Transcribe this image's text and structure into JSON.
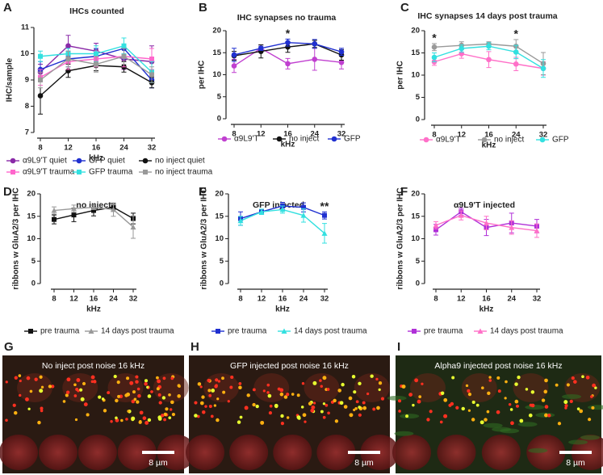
{
  "chart_data": [
    {
      "type": "line",
      "panel": "A",
      "title": "IHCs counted",
      "x_label": "kHz",
      "y_label": "IHC/sample",
      "categories": [
        "8",
        "12",
        "16",
        "24",
        "32"
      ],
      "ylim": [
        7,
        11
      ],
      "yticks": [
        7,
        8,
        9,
        10,
        11
      ],
      "series": [
        {
          "name": "α9L9'T quiet",
          "color": "#8a2aa8",
          "marker": "circle",
          "values": [
            9.3,
            10.3,
            10.1,
            9.8,
            9.7
          ],
          "errors": [
            0.3,
            0.4,
            0.3,
            0.4,
            0.6
          ]
        },
        {
          "name": "GFP quiet",
          "color": "#2030d0",
          "marker": "circle",
          "values": [
            9.4,
            9.8,
            9.9,
            10.2,
            9.0
          ],
          "errors": [
            0.3,
            0.3,
            0.3,
            0.4,
            0.3
          ]
        },
        {
          "name": "no inject quiet",
          "color": "#111111",
          "marker": "circle",
          "values": [
            8.4,
            9.35,
            9.55,
            9.5,
            8.9
          ],
          "errors": [
            0.7,
            0.25,
            0.2,
            0.2,
            0.2
          ]
        },
        {
          "name": "α9L9'T trauma",
          "color": "#ff66cc",
          "marker": "square",
          "values": [
            9.1,
            9.7,
            9.8,
            9.9,
            9.8
          ],
          "errors": [
            0.3,
            0.3,
            0.3,
            0.4,
            0.4
          ]
        },
        {
          "name": "GFP trauma",
          "color": "#33e0e0",
          "marker": "square",
          "values": [
            9.9,
            10.0,
            10.0,
            10.3,
            9.3
          ],
          "errors": [
            0.2,
            0.2,
            0.3,
            0.3,
            0.4
          ]
        },
        {
          "name": "no inject trauma",
          "color": "#999999",
          "marker": "square",
          "values": [
            9.0,
            9.8,
            9.6,
            9.9,
            9.2
          ],
          "errors": [
            0.3,
            0.3,
            0.3,
            0.3,
            0.3
          ]
        }
      ]
    },
    {
      "type": "line",
      "panel": "B",
      "title": "IHC synapses no trauma",
      "x_label": "kHz",
      "y_label": "per IHC",
      "categories": [
        "8",
        "12",
        "16",
        "24",
        "32"
      ],
      "ylim": [
        0,
        20
      ],
      "yticks": [
        0,
        5,
        10,
        15,
        20
      ],
      "series": [
        {
          "name": "α9L9'T",
          "color": "#c040d0",
          "marker": "circle",
          "values": [
            12.0,
            16.0,
            12.5,
            13.5,
            12.8
          ],
          "errors": [
            1.5,
            0.8,
            1.2,
            2.5,
            1.5
          ]
        },
        {
          "name": "no inject",
          "color": "#111111",
          "marker": "circle",
          "values": [
            14.3,
            15.3,
            16.3,
            17.0,
            14.5
          ],
          "errors": [
            1.0,
            1.5,
            1.2,
            0.8,
            1.2
          ]
        },
        {
          "name": "GFP",
          "color": "#2030d0",
          "marker": "circle",
          "values": [
            14.5,
            16.0,
            17.3,
            17.0,
            15.2
          ],
          "errors": [
            1.5,
            0.5,
            0.8,
            1.0,
            0.8
          ]
        }
      ],
      "annotations": [
        {
          "text": "*",
          "x": "16",
          "color": "#2030d0"
        }
      ]
    },
    {
      "type": "line",
      "panel": "C",
      "title": "IHC synapses 14 days post trauma",
      "x_label": "kHz",
      "y_label": "per IHC",
      "categories": [
        "8",
        "12",
        "16",
        "24",
        "32"
      ],
      "ylim": [
        0,
        20
      ],
      "yticks": [
        0,
        5,
        10,
        15,
        20
      ],
      "series": [
        {
          "name": "α9L9'T",
          "color": "#ff70c8",
          "marker": "circle",
          "values": [
            13.0,
            14.8,
            13.5,
            12.5,
            11.5
          ],
          "errors": [
            0.8,
            1.0,
            1.8,
            1.5,
            1.5
          ]
        },
        {
          "name": "no inject",
          "color": "#999999",
          "marker": "circle",
          "values": [
            16.3,
            16.7,
            17.0,
            16.5,
            12.6
          ],
          "errors": [
            0.8,
            0.8,
            0.5,
            1.5,
            2.5
          ]
        },
        {
          "name": "GFP",
          "color": "#33e0e0",
          "marker": "circle",
          "values": [
            14.0,
            16.0,
            16.5,
            15.2,
            11.5
          ],
          "errors": [
            1.0,
            0.8,
            0.8,
            1.5,
            2.0
          ]
        }
      ],
      "annotations": [
        {
          "text": "*",
          "x": "8",
          "color": "#999999"
        },
        {
          "text": "*",
          "x": "24",
          "color": "#999999"
        }
      ]
    },
    {
      "type": "line",
      "panel": "D",
      "title": "no inject",
      "x_label": "kHz",
      "y_label": "ribbons w GluA2/3 per IHC",
      "categories": [
        "8",
        "12",
        "16",
        "24",
        "32"
      ],
      "ylim": [
        0,
        20
      ],
      "yticks": [
        0,
        5,
        10,
        15,
        20
      ],
      "series": [
        {
          "name": "pre trauma",
          "color": "#111111",
          "marker": "square",
          "values": [
            14.3,
            15.3,
            16.3,
            17.0,
            14.5
          ],
          "errors": [
            1.0,
            1.5,
            1.2,
            0.8,
            1.2
          ]
        },
        {
          "name": "14 days post trauma",
          "color": "#999999",
          "marker": "triangle",
          "values": [
            16.3,
            16.7,
            17.0,
            16.5,
            12.6
          ],
          "errors": [
            0.8,
            0.8,
            0.5,
            1.5,
            2.5
          ]
        }
      ]
    },
    {
      "type": "line",
      "panel": "E",
      "title": "GFP injected",
      "x_label": "kHz",
      "y_label": "ribbons w GluA2/3 per IHC",
      "categories": [
        "8",
        "12",
        "16",
        "24",
        "32"
      ],
      "ylim": [
        0,
        20
      ],
      "yticks": [
        0,
        5,
        10,
        15,
        20
      ],
      "series": [
        {
          "name": "pre trauma",
          "color": "#2030d0",
          "marker": "square",
          "values": [
            14.5,
            16.0,
            17.3,
            17.0,
            15.2
          ],
          "errors": [
            1.5,
            0.4,
            0.8,
            1.0,
            0.8
          ]
        },
        {
          "name": "14 days post trauma",
          "color": "#33e0e0",
          "marker": "triangle",
          "values": [
            14.0,
            16.0,
            16.5,
            15.2,
            11.2
          ],
          "errors": [
            1.0,
            0.6,
            0.8,
            1.5,
            2.2
          ]
        }
      ],
      "annotations": [
        {
          "text": "**",
          "x": "32",
          "color": "#33e0e0"
        }
      ]
    },
    {
      "type": "line",
      "panel": "F",
      "title": "α9L9'T injected",
      "x_label": "kHz",
      "y_label": "ribbons w GluA2/3 per IHC",
      "categories": [
        "8",
        "12",
        "16",
        "24",
        "32"
      ],
      "ylim": [
        0,
        20
      ],
      "yticks": [
        0,
        5,
        10,
        15,
        20
      ],
      "series": [
        {
          "name": "pre trauma",
          "color": "#b030d8",
          "marker": "square",
          "values": [
            12.0,
            16.0,
            12.5,
            13.5,
            12.8
          ],
          "errors": [
            1.2,
            0.8,
            1.8,
            2.2,
            1.5
          ]
        },
        {
          "name": "14 days post trauma",
          "color": "#ff70c8",
          "marker": "triangle",
          "values": [
            13.0,
            15.2,
            13.5,
            12.5,
            11.8
          ],
          "errors": [
            0.8,
            1.0,
            1.5,
            1.5,
            1.5
          ]
        }
      ]
    }
  ],
  "images": [
    {
      "panel": "G",
      "caption": "No inject post noise 16 kHz",
      "scale_bar": "8 µm"
    },
    {
      "panel": "H",
      "caption": "GFP injected post noise 16 kHz",
      "scale_bar": "8 µm"
    },
    {
      "panel": "I",
      "caption": "Alpha9 injected post noise 16 kHz",
      "scale_bar": "8 µm"
    }
  ]
}
